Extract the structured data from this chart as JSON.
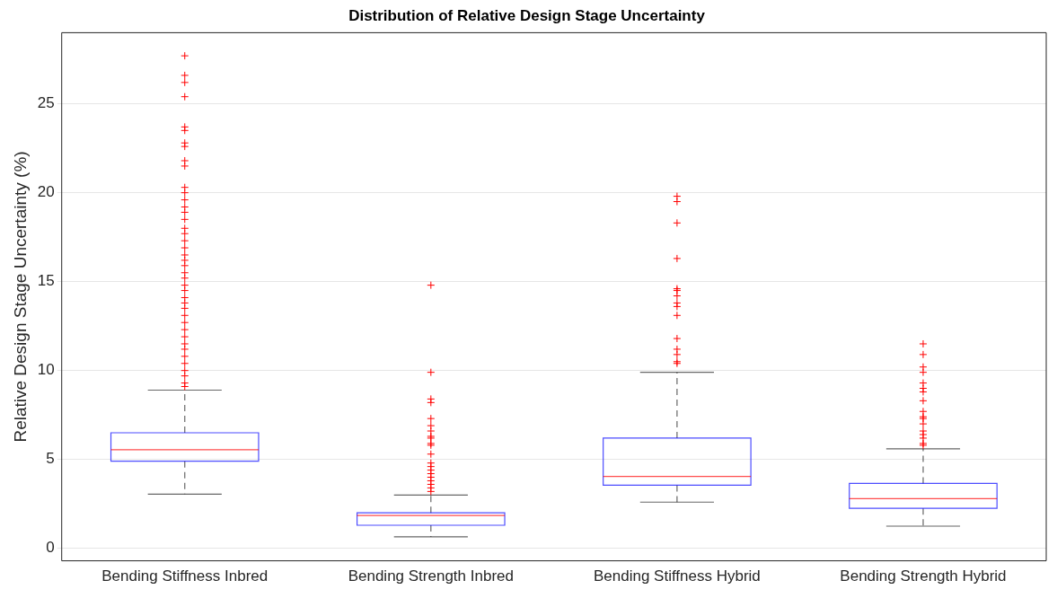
{
  "chart_data": {
    "type": "box",
    "title": "Distribution of Relative Design Stage Uncertainty",
    "ylabel": "Relative Design Stage Uncertainty (%)",
    "categories": [
      "Bending Stiffness Inbred",
      "Bending Strength Inbred",
      "Bending Stiffness Hybrid",
      "Bending Strength Hybrid"
    ],
    "ylim": [
      -0.7,
      29
    ],
    "yticks": [
      0,
      5,
      10,
      15,
      20,
      25
    ],
    "grid": "y",
    "legend": false,
    "marker": "cross",
    "series": [
      {
        "color": "#0000ff",
        "boxes": [
          {
            "low": 3.05,
            "q1": 4.9,
            "median": 5.55,
            "q3": 6.5,
            "high": 8.9,
            "outliers": [
              27.7,
              26.6,
              26.2,
              25.4,
              23.7,
              23.5,
              22.8,
              22.6,
              21.8,
              21.5,
              20.3,
              20.0,
              19.6,
              19.2,
              18.9,
              18.5,
              18.0,
              17.7,
              17.3,
              16.9,
              16.5,
              16.2,
              15.9,
              15.5,
              15.2,
              14.8,
              14.5,
              14.1,
              13.8,
              13.5,
              13.1,
              12.7,
              12.3,
              11.9,
              11.5,
              11.2,
              10.8,
              10.4,
              10.0,
              9.7,
              9.3,
              9.1
            ]
          },
          {
            "low": 0.65,
            "q1": 1.3,
            "median": 1.85,
            "q3": 2.0,
            "high": 3.0,
            "outliers": [
              14.8,
              9.9,
              8.4,
              8.2,
              7.3,
              6.9,
              6.6,
              6.3,
              6.2,
              5.9,
              5.8,
              5.3,
              4.8,
              4.6,
              4.4,
              4.2,
              4.0,
              3.8,
              3.6,
              3.4,
              3.2
            ]
          },
          {
            "low": 2.6,
            "q1": 3.55,
            "median": 4.05,
            "q3": 6.2,
            "high": 9.9,
            "outliers": [
              19.8,
              19.5,
              18.3,
              16.3,
              14.6,
              14.5,
              14.2,
              13.8,
              13.6,
              13.1,
              11.8,
              11.2,
              10.9,
              10.5,
              10.4
            ]
          },
          {
            "low": 1.25,
            "q1": 2.25,
            "median": 2.8,
            "q3": 3.65,
            "high": 5.6,
            "outliers": [
              11.5,
              10.9,
              10.2,
              9.9,
              9.3,
              9.0,
              8.8,
              8.3,
              7.7,
              7.4,
              7.3,
              7.0,
              6.6,
              6.4,
              6.2,
              5.9,
              5.8
            ]
          }
        ]
      }
    ]
  }
}
